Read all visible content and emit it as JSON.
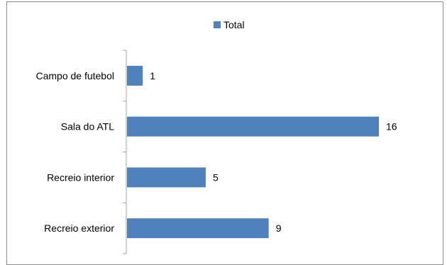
{
  "chart_data": {
    "type": "bar",
    "orientation": "horizontal",
    "categories": [
      "Campo de  futebol",
      "Sala do ATL",
      "Recreio interior",
      "Recreio exterior"
    ],
    "series": [
      {
        "name": "Total",
        "values": [
          1,
          16,
          5,
          9
        ]
      }
    ],
    "xlim": [
      0,
      16
    ],
    "grid": false,
    "legend_position": "top-center",
    "data_labels": true,
    "colors": {
      "bar": "#4f81bd",
      "axis": "#a6a6a6"
    }
  }
}
